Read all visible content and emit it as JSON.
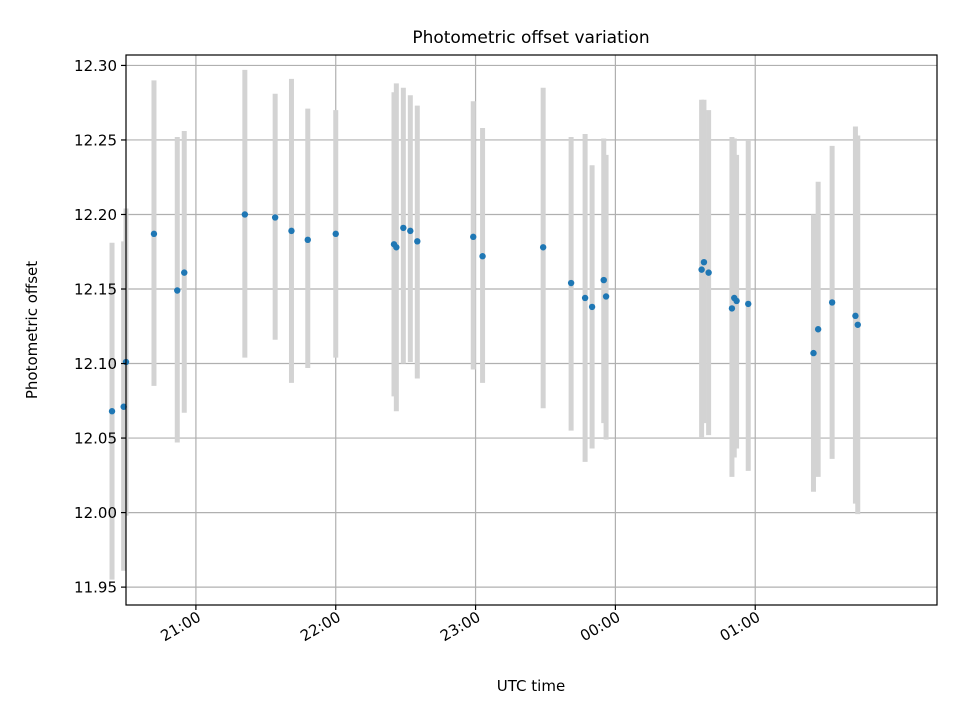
{
  "chart_data": {
    "type": "scatter",
    "title": "Photometric offset variation",
    "xlabel": "UTC time",
    "ylabel": "Photometric offset",
    "x_axis_type": "time",
    "x_range": [
      "20:30",
      "02:18"
    ],
    "ylim": [
      11.938,
      12.307
    ],
    "x_ticks": [
      "21:00",
      "22:00",
      "23:00",
      "00:00",
      "01:00"
    ],
    "y_ticks": [
      "11.95",
      "12.00",
      "12.05",
      "12.10",
      "12.15",
      "12.20",
      "12.25",
      "12.30"
    ],
    "grid": true,
    "legend": null,
    "colors": {
      "points": "#1f77b4",
      "errorbars": "#d3d3d3",
      "grid": "#b0b0b0"
    },
    "series": [
      {
        "points": [
          {
            "x": "20:24",
            "y": 12.068,
            "ylow": 11.955,
            "yhigh": 12.181
          },
          {
            "x": "20:29",
            "y": 12.071,
            "ylow": 11.961,
            "yhigh": 12.182
          },
          {
            "x": "20:30",
            "y": 12.101,
            "ylow": 11.998,
            "yhigh": 12.204
          },
          {
            "x": "20:42",
            "y": 12.187,
            "ylow": 12.085,
            "yhigh": 12.29
          },
          {
            "x": "20:52",
            "y": 12.149,
            "ylow": 12.047,
            "yhigh": 12.252
          },
          {
            "x": "20:55",
            "y": 12.161,
            "ylow": 12.067,
            "yhigh": 12.256
          },
          {
            "x": "21:21",
            "y": 12.2,
            "ylow": 12.104,
            "yhigh": 12.297
          },
          {
            "x": "21:34",
            "y": 12.198,
            "ylow": 12.116,
            "yhigh": 12.281
          },
          {
            "x": "21:41",
            "y": 12.189,
            "ylow": 12.087,
            "yhigh": 12.291
          },
          {
            "x": "21:48",
            "y": 12.183,
            "ylow": 12.097,
            "yhigh": 12.271
          },
          {
            "x": "22:00",
            "y": 12.187,
            "ylow": 12.104,
            "yhigh": 12.27
          },
          {
            "x": "22:25",
            "y": 12.18,
            "ylow": 12.078,
            "yhigh": 12.282
          },
          {
            "x": "22:26",
            "y": 12.178,
            "ylow": 12.068,
            "yhigh": 12.288
          },
          {
            "x": "22:29",
            "y": 12.191,
            "ylow": 12.1,
            "yhigh": 12.285
          },
          {
            "x": "22:32",
            "y": 12.189,
            "ylow": 12.101,
            "yhigh": 12.28
          },
          {
            "x": "22:35",
            "y": 12.182,
            "ylow": 12.09,
            "yhigh": 12.273
          },
          {
            "x": "22:59",
            "y": 12.185,
            "ylow": 12.096,
            "yhigh": 12.276
          },
          {
            "x": "23:03",
            "y": 12.172,
            "ylow": 12.087,
            "yhigh": 12.258
          },
          {
            "x": "23:29",
            "y": 12.178,
            "ylow": 12.07,
            "yhigh": 12.285
          },
          {
            "x": "23:41",
            "y": 12.154,
            "ylow": 12.055,
            "yhigh": 12.252
          },
          {
            "x": "23:47",
            "y": 12.144,
            "ylow": 12.034,
            "yhigh": 12.254
          },
          {
            "x": "23:50",
            "y": 12.138,
            "ylow": 12.043,
            "yhigh": 12.233
          },
          {
            "x": "23:55",
            "y": 12.156,
            "ylow": 12.06,
            "yhigh": 12.251
          },
          {
            "x": "23:56",
            "y": 12.145,
            "ylow": 12.049,
            "yhigh": 12.24
          },
          {
            "x": "00:37",
            "y": 12.163,
            "ylow": 12.05,
            "yhigh": 12.277
          },
          {
            "x": "00:38",
            "y": 12.168,
            "ylow": 12.06,
            "yhigh": 12.277
          },
          {
            "x": "00:40",
            "y": 12.161,
            "ylow": 12.052,
            "yhigh": 12.27
          },
          {
            "x": "00:50",
            "y": 12.137,
            "ylow": 12.024,
            "yhigh": 12.252
          },
          {
            "x": "00:51",
            "y": 12.144,
            "ylow": 12.037,
            "yhigh": 12.251
          },
          {
            "x": "00:52",
            "y": 12.142,
            "ylow": 12.043,
            "yhigh": 12.24
          },
          {
            "x": "00:57",
            "y": 12.14,
            "ylow": 12.028,
            "yhigh": 12.25
          },
          {
            "x": "01:25",
            "y": 12.107,
            "ylow": 12.014,
            "yhigh": 12.2
          },
          {
            "x": "01:27",
            "y": 12.123,
            "ylow": 12.024,
            "yhigh": 12.222
          },
          {
            "x": "01:33",
            "y": 12.141,
            "ylow": 12.036,
            "yhigh": 12.246
          },
          {
            "x": "01:43",
            "y": 12.132,
            "ylow": 12.006,
            "yhigh": 12.259
          },
          {
            "x": "01:44",
            "y": 12.126,
            "ylow": 11.999,
            "yhigh": 12.253
          }
        ]
      }
    ]
  }
}
